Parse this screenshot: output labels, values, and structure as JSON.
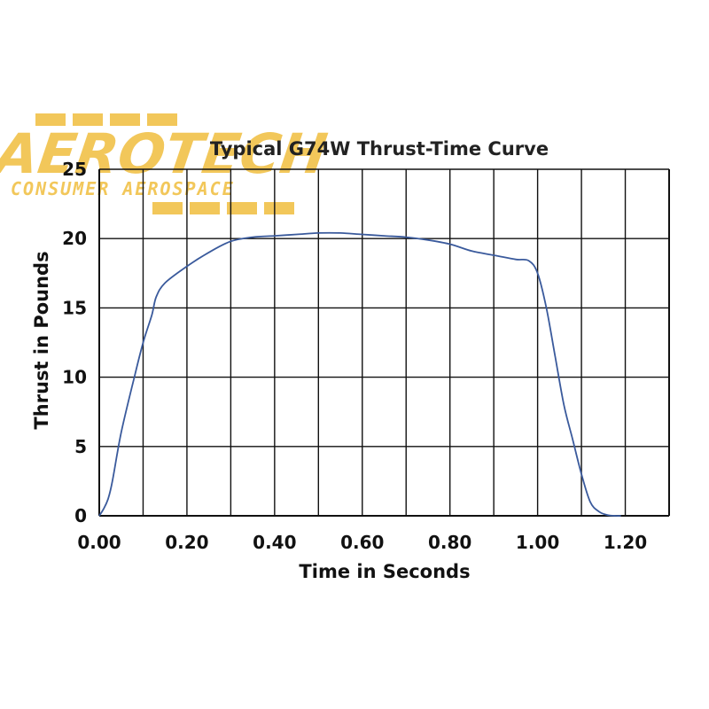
{
  "logo": {
    "word": "AEROTECH",
    "tagline": "CONSUMER AEROSPACE"
  },
  "colors": {
    "curve": "#3a5a9c",
    "grid": "#111111",
    "logo": "#f2c75a"
  },
  "chart_data": {
    "type": "line",
    "title": "Typical G74W Thrust-Time Curve",
    "xlabel": "Time in Seconds",
    "ylabel": "Thrust in Pounds",
    "xlim": [
      0,
      1.3
    ],
    "ylim": [
      0,
      25
    ],
    "xticks": [
      "0.00",
      "0.20",
      "0.40",
      "0.60",
      "0.80",
      "1.00",
      "1.20"
    ],
    "xtick_values": [
      0,
      0.2,
      0.4,
      0.6,
      0.8,
      1.0,
      1.2
    ],
    "yticks": [
      "0",
      "5",
      "10",
      "15",
      "20",
      "25"
    ],
    "ytick_values": [
      0,
      5,
      10,
      15,
      20,
      25
    ],
    "grid": true,
    "series": [
      {
        "x": [
          0.0,
          0.01,
          0.02,
          0.03,
          0.05,
          0.08,
          0.1,
          0.12,
          0.13,
          0.15,
          0.2,
          0.25,
          0.3,
          0.35,
          0.4,
          0.45,
          0.5,
          0.55,
          0.6,
          0.65,
          0.7,
          0.75,
          0.8,
          0.85,
          0.9,
          0.95,
          0.98,
          1.0,
          1.02,
          1.04,
          1.06,
          1.08,
          1.1,
          1.12,
          1.14,
          1.16,
          1.18,
          1.19
        ],
        "y": [
          0.0,
          0.5,
          1.2,
          2.5,
          6.0,
          10.0,
          12.5,
          14.5,
          15.8,
          16.8,
          18.0,
          19.0,
          19.8,
          20.1,
          20.2,
          20.3,
          20.4,
          20.4,
          20.3,
          20.2,
          20.1,
          19.9,
          19.6,
          19.1,
          18.8,
          18.5,
          18.4,
          17.5,
          15.0,
          11.5,
          8.0,
          5.5,
          3.0,
          1.0,
          0.3,
          0.05,
          0.0,
          0.0
        ]
      }
    ]
  }
}
